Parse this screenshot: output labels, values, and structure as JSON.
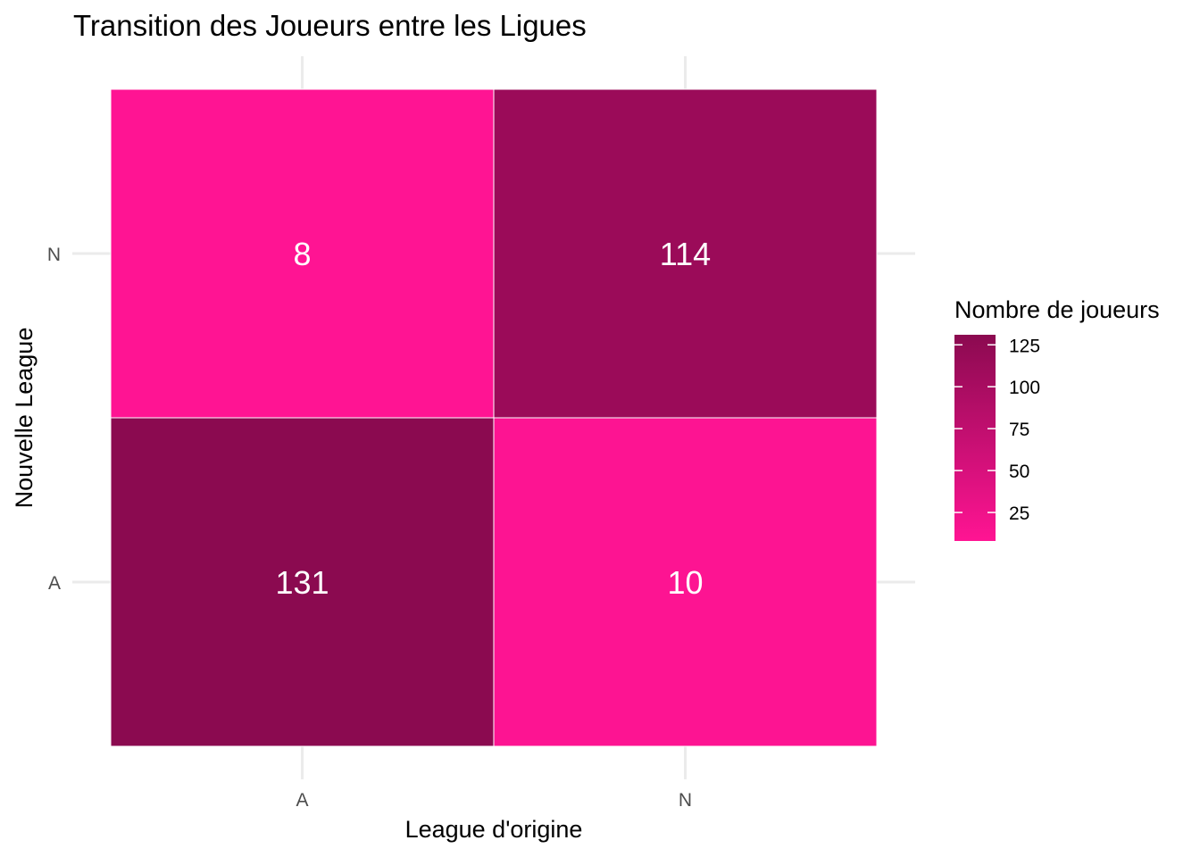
{
  "chart_data": {
    "type": "heatmap",
    "title": "Transition des Joueurs entre les Ligues",
    "xlabel": "League d'origine",
    "ylabel": "Nouvelle League",
    "x_categories": [
      "A",
      "N"
    ],
    "y_categories": [
      "A",
      "N"
    ],
    "cells": [
      {
        "x": "A",
        "y": "A",
        "value": 131
      },
      {
        "x": "A",
        "y": "N",
        "value": 8
      },
      {
        "x": "N",
        "y": "A",
        "value": 10
      },
      {
        "x": "N",
        "y": "N",
        "value": 114
      }
    ],
    "legend": {
      "title": "Nombre de joueurs",
      "placement": "right",
      "range": [
        8,
        131
      ],
      "ticks": [
        25,
        50,
        75,
        100,
        125
      ],
      "low_color": "#ff1493",
      "high_color": "#8b0a50"
    },
    "grid": true
  }
}
